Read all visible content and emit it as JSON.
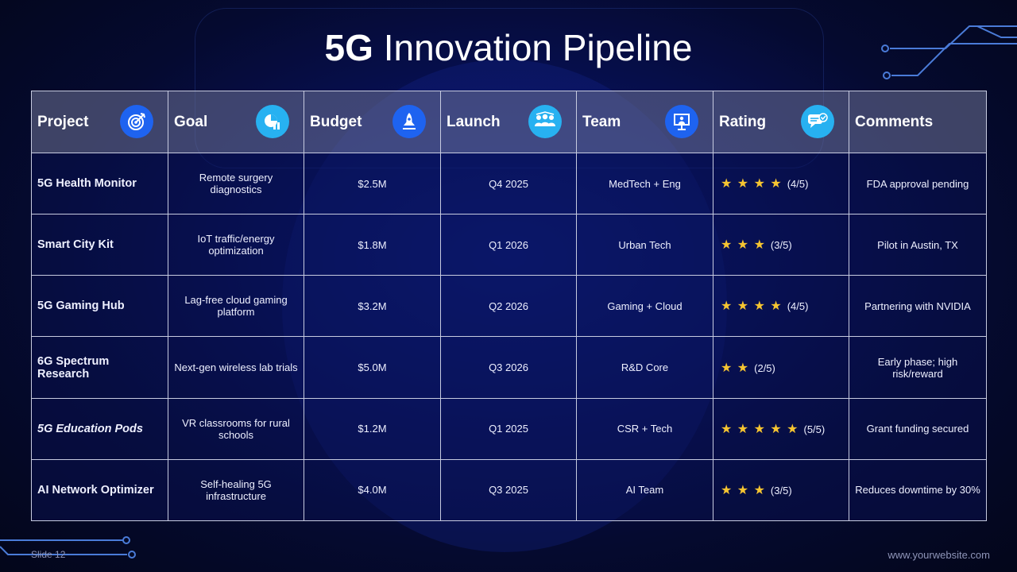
{
  "slide": {
    "title_strong": "5G",
    "title_rest": "Innovation Pipeline",
    "footer_left": "Slide 12",
    "footer_right": "www.yourwebsite.com"
  },
  "colors": {
    "background": "#050a30",
    "header_row": "#6e7396",
    "icon_blue": "#1e63f0",
    "icon_cyan": "#27b1f1",
    "star": "#f6c531",
    "circuit": "#4a7bd8"
  },
  "table": {
    "headers": [
      {
        "label": "Project",
        "icon": "target-icon",
        "icon_color": "blue"
      },
      {
        "label": "Goal",
        "icon": "growth-chart-icon",
        "icon_color": "cyan"
      },
      {
        "label": "Budget",
        "icon": "rocket-icon",
        "icon_color": "blue"
      },
      {
        "label": "Launch",
        "icon": "team-group-icon",
        "icon_color": "cyan"
      },
      {
        "label": "Team",
        "icon": "presentation-board-icon",
        "icon_color": "blue"
      },
      {
        "label": "Rating",
        "icon": "chat-bubble-icon",
        "icon_color": "cyan"
      },
      {
        "label": "Comments",
        "icon": "",
        "icon_color": ""
      }
    ],
    "rows": [
      {
        "project": "5G Health Monitor",
        "goal": "Remote surgery diagnostics",
        "budget": "$2.5M",
        "launch": "Q4 2025",
        "team": "MedTech + Eng",
        "stars": "★ ★ ★ ★",
        "rating_value": 4,
        "rating": "(4/5)",
        "comments": "FDA approval pending"
      },
      {
        "project": "Smart City Kit",
        "goal": "IoT traffic/energy optimization",
        "budget": "$1.8M",
        "launch": "Q1 2026",
        "team": "Urban Tech",
        "stars": "★ ★ ★",
        "rating_value": 3,
        "rating": "(3/5)",
        "comments": "Pilot in Austin, TX"
      },
      {
        "project": "5G Gaming Hub",
        "goal": "Lag-free cloud gaming platform",
        "budget": "$3.2M",
        "launch": "Q2 2026",
        "team": "Gaming + Cloud",
        "stars": "★ ★ ★ ★",
        "rating_value": 4,
        "rating": "(4/5)",
        "comments": "Partnering with NVIDIA"
      },
      {
        "project": "6G Spectrum Research",
        "goal": "Next-gen wireless lab trials",
        "budget": "$5.0M",
        "launch": "Q3 2026",
        "team": "R&D Core",
        "stars": "★ ★",
        "rating_value": 2,
        "rating": "(2/5)",
        "comments": "Early phase; high risk/reward"
      },
      {
        "project": "5G Education Pods",
        "goal": "VR classrooms for rural schools",
        "budget": "$1.2M",
        "launch": "Q1 2025",
        "team": "CSR + Tech",
        "stars": "★ ★ ★ ★ ★",
        "rating_value": 5,
        "rating": "(5/5)",
        "comments": "Grant funding secured"
      },
      {
        "project": "AI Network Optimizer",
        "goal": "Self-healing 5G infrastructure",
        "budget": "$4.0M",
        "launch": "Q3 2025",
        "team": "AI Team",
        "stars": "★ ★ ★",
        "rating_value": 3,
        "rating": "(3/5)",
        "comments": "Reduces downtime by 30%"
      }
    ]
  }
}
